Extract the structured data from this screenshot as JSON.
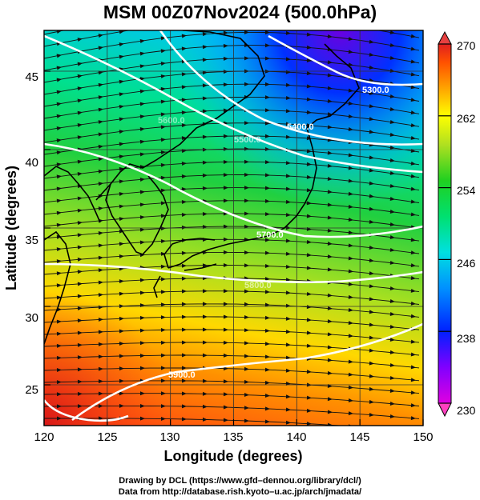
{
  "title": "MSM 00Z07Nov2024 (500.0hPa)",
  "x_axis": {
    "label": "Longitude (degrees)",
    "ticks": [
      "120",
      "125",
      "130",
      "135",
      "140",
      "145",
      "150"
    ],
    "range": [
      120,
      150
    ]
  },
  "y_axis": {
    "label": "Latitude  (degrees)",
    "ticks": [
      "25",
      "30",
      "35",
      "40",
      "45"
    ],
    "range": [
      22.4,
      47.6
    ]
  },
  "colorbar": {
    "ticks": [
      "230",
      "238",
      "246",
      "254",
      "262",
      "270"
    ],
    "range": [
      230,
      270
    ],
    "colors": [
      "#e000e0",
      "#8000ff",
      "#0020ff",
      "#0090ff",
      "#00e0e0",
      "#00e060",
      "#20d020",
      "#a0e020",
      "#ffff00",
      "#ffa000",
      "#ff5000",
      "#e02020"
    ]
  },
  "contours": [
    {
      "label": "5300.0"
    },
    {
      "label": "5400.0"
    },
    {
      "label": "5500.0"
    },
    {
      "label": "5600.0"
    },
    {
      "label": "5700.0"
    },
    {
      "label": "5800.0"
    },
    {
      "label": "5900.0"
    }
  ],
  "credits": {
    "line1": "Drawing by DCL (https://www.gfd–dennou.org/library/dcl/)",
    "line2": "Data from http://database.rish.kyoto–u.ac.jp/arch/jmadata/"
  }
}
